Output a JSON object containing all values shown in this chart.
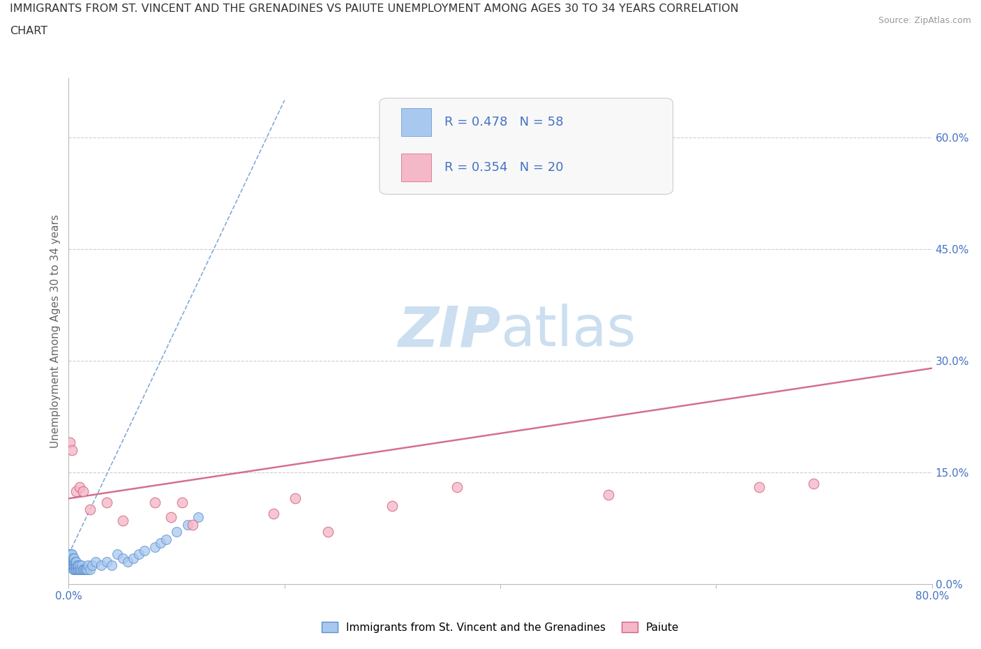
{
  "title_line1": "IMMIGRANTS FROM ST. VINCENT AND THE GRENADINES VS PAIUTE UNEMPLOYMENT AMONG AGES 30 TO 34 YEARS CORRELATION",
  "title_line2": "CHART",
  "source": "Source: ZipAtlas.com",
  "ylabel": "Unemployment Among Ages 30 to 34 years",
  "xlim": [
    0.0,
    0.8
  ],
  "ylim": [
    0.0,
    0.68
  ],
  "xtick_positions": [
    0.0,
    0.2,
    0.4,
    0.6,
    0.8
  ],
  "xtick_labels": [
    "0.0%",
    "",
    "",
    "",
    "80.0%"
  ],
  "ytick_vals": [
    0.0,
    0.15,
    0.3,
    0.45,
    0.6
  ],
  "ytick_labels": [
    "0.0%",
    "15.0%",
    "30.0%",
    "45.0%",
    "60.0%"
  ],
  "series1_label": "Immigrants from St. Vincent and the Grenadines",
  "series1_R": "0.478",
  "series1_N": "58",
  "series1_color": "#a8c8f0",
  "series1_edge": "#5b8fcc",
  "series2_label": "Paiute",
  "series2_R": "0.354",
  "series2_N": "20",
  "series2_color": "#f4b8c8",
  "series2_edge": "#d06080",
  "watermark_zip": "ZIP",
  "watermark_atlas": "atlas",
  "watermark_color": "#ccdff0",
  "blue_scatter_x": [
    0.001,
    0.001,
    0.001,
    0.002,
    0.002,
    0.002,
    0.002,
    0.003,
    0.003,
    0.003,
    0.003,
    0.004,
    0.004,
    0.004,
    0.004,
    0.005,
    0.005,
    0.005,
    0.005,
    0.006,
    0.006,
    0.006,
    0.007,
    0.007,
    0.007,
    0.008,
    0.008,
    0.009,
    0.009,
    0.01,
    0.01,
    0.011,
    0.012,
    0.012,
    0.013,
    0.014,
    0.015,
    0.016,
    0.017,
    0.018,
    0.02,
    0.022,
    0.025,
    0.03,
    0.035,
    0.04,
    0.045,
    0.05,
    0.055,
    0.06,
    0.065,
    0.07,
    0.08,
    0.085,
    0.09,
    0.1,
    0.11,
    0.12
  ],
  "blue_scatter_y": [
    0.03,
    0.035,
    0.04,
    0.025,
    0.03,
    0.035,
    0.04,
    0.025,
    0.03,
    0.035,
    0.04,
    0.02,
    0.025,
    0.03,
    0.035,
    0.02,
    0.025,
    0.03,
    0.035,
    0.02,
    0.025,
    0.03,
    0.02,
    0.025,
    0.03,
    0.02,
    0.025,
    0.02,
    0.025,
    0.02,
    0.025,
    0.02,
    0.02,
    0.025,
    0.02,
    0.02,
    0.02,
    0.02,
    0.02,
    0.025,
    0.02,
    0.025,
    0.03,
    0.025,
    0.03,
    0.025,
    0.04,
    0.035,
    0.03,
    0.035,
    0.04,
    0.045,
    0.05,
    0.055,
    0.06,
    0.07,
    0.08,
    0.09
  ],
  "pink_scatter_x": [
    0.001,
    0.003,
    0.007,
    0.01,
    0.013,
    0.02,
    0.035,
    0.05,
    0.08,
    0.095,
    0.105,
    0.115,
    0.19,
    0.21,
    0.24,
    0.3,
    0.36,
    0.5,
    0.64,
    0.69
  ],
  "pink_scatter_y": [
    0.19,
    0.18,
    0.125,
    0.13,
    0.125,
    0.1,
    0.11,
    0.085,
    0.11,
    0.09,
    0.11,
    0.08,
    0.095,
    0.115,
    0.07,
    0.105,
    0.13,
    0.12,
    0.13,
    0.135
  ],
  "blue_trend_x": [
    0.0,
    0.2
  ],
  "blue_trend_y": [
    0.04,
    0.65
  ],
  "pink_trend_x": [
    0.0,
    0.8
  ],
  "pink_trend_y": [
    0.115,
    0.29
  ],
  "bg_color": "#ffffff",
  "grid_color": "#cccccc",
  "axis_label_color": "#666666",
  "tick_label_color": "#4472c4",
  "legend_color": "#4472c4",
  "legend_bg": "#f8f8f8",
  "legend_edge": "#cccccc"
}
